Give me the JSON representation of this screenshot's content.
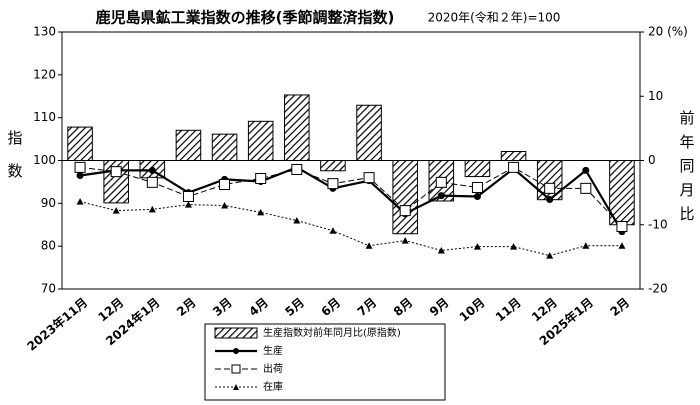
{
  "chart_data": {
    "type": "combo",
    "title": "鹿児島県鉱工業指数の推移(季節調整済指数)",
    "subtitle": "2020年(令和２年)=100",
    "ylabel": "指数",
    "y2label": "前年同月比",
    "categories": [
      "2023年11月",
      "12月",
      "2024年1月",
      "2月",
      "3月",
      "4月",
      "5月",
      "6月",
      "7月",
      "8月",
      "9月",
      "10月",
      "11月",
      "12月",
      "2025年1月",
      "2月"
    ],
    "ylim": [
      70,
      130
    ],
    "yticks": [
      70,
      80,
      90,
      100,
      110,
      120,
      130
    ],
    "y2lim": [
      -20,
      20
    ],
    "y2ticks": [
      {
        "value": 20,
        "label": "20 (%)"
      },
      10,
      0,
      -10,
      -20
    ],
    "series": [
      {
        "name": "生産指数対前年同月比(原指数)",
        "type": "bar",
        "axis": "y2",
        "color": "#000000",
        "hatch": true,
        "values": [
          5.2,
          -6.6,
          -2.7,
          4.7,
          4.1,
          6.1,
          10.2,
          -1.6,
          8.6,
          -11.4,
          -6.3,
          -2.5,
          1.4,
          -6.1,
          0,
          -10.0
        ]
      },
      {
        "name": "生産",
        "type": "line",
        "color": "#000000",
        "dash": "solid",
        "marker": "circle",
        "values": [
          96.5,
          97.7,
          97.7,
          92.5,
          95.6,
          95.1,
          98.4,
          93.5,
          95.3,
          87.6,
          91.8,
          91.6,
          98.1,
          90.9,
          97.7,
          83.4
        ]
      },
      {
        "name": "出荷",
        "type": "line",
        "color": "#000000",
        "dash": "dashed",
        "marker": "square",
        "values": [
          98.4,
          97.4,
          94.9,
          91.6,
          94.4,
          95.8,
          97.9,
          94.6,
          96.0,
          88.3,
          94.9,
          93.7,
          98.4,
          93.5,
          93.5,
          84.6
        ]
      },
      {
        "name": "在庫",
        "type": "line",
        "color": "#000000",
        "dash": "dotted",
        "marker": "triangle",
        "values": [
          90.4,
          88.3,
          88.6,
          89.7,
          89.5,
          87.9,
          86.0,
          83.6,
          80.1,
          81.3,
          79.0,
          79.9,
          79.9,
          77.8,
          80.1,
          80.1
        ]
      }
    ]
  }
}
